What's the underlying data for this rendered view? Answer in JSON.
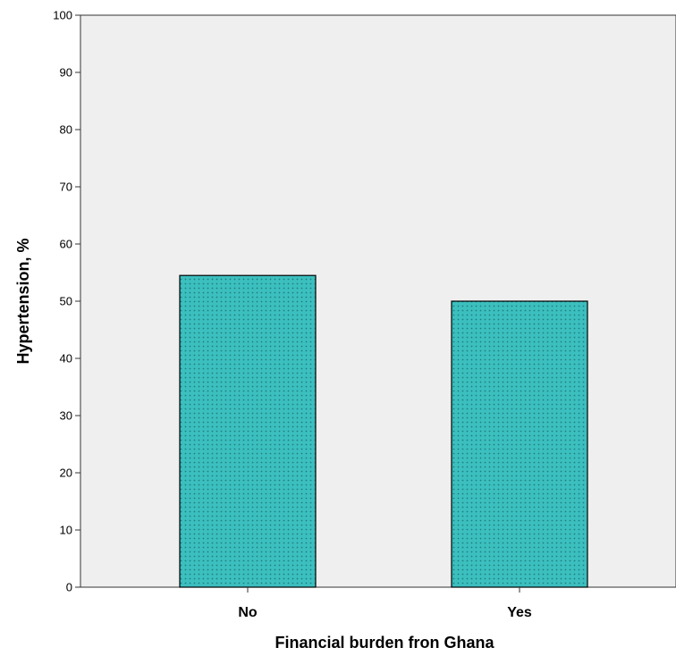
{
  "chart_data": {
    "type": "bar",
    "categories": [
      "No",
      "Yes"
    ],
    "values": [
      54.5,
      50.0
    ],
    "title": "",
    "xlabel": "Financial burden fron Ghana",
    "ylabel": "Hypertension, %",
    "ylim": [
      0,
      100
    ],
    "yticks": [
      "0",
      "10",
      "20",
      "30",
      "40",
      "50",
      "60",
      "70",
      "80",
      "90",
      "100"
    ],
    "grid": false,
    "legend": "none",
    "colors": {
      "bar_fill": "#3cbfbf",
      "bar_dots": "#1f7f7f",
      "plot_background": "#efefef",
      "axis": "#333333"
    }
  }
}
